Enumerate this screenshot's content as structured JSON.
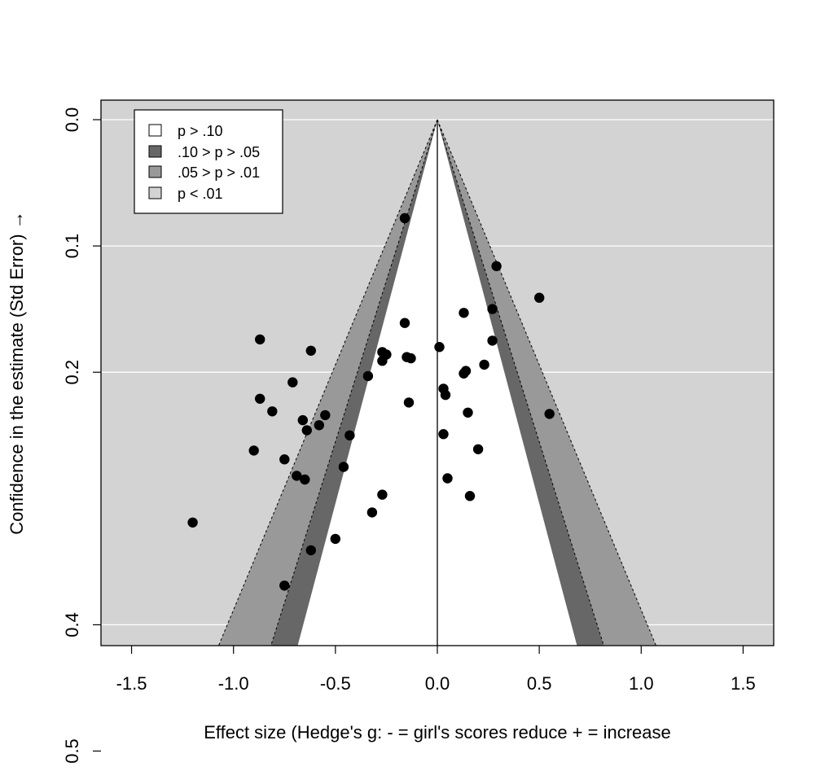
{
  "chart_data": {
    "type": "scatter",
    "subtype": "contour-enhanced funnel plot",
    "xlabel": "Effect size (Hedge's g: - = girl's scores reduce + = increase",
    "ylabel": "Confidence in the estimate (Std Error) →",
    "xlim": [
      -1.65,
      1.65
    ],
    "ylim": [
      0,
      0.52
    ],
    "y_reversed": true,
    "x_ticks": [
      -1.5,
      -1.0,
      -0.5,
      0.0,
      0.5,
      1.0,
      1.5
    ],
    "x_tick_labels": [
      "-1.5",
      "-1.0",
      "-0.5",
      "0.0",
      "0.5",
      "1.0",
      "1.5"
    ],
    "y_ticks": [
      0.0,
      0.1,
      0.2,
      0.4,
      0.5
    ],
    "y_tick_labels": [
      "0.0",
      "0.1",
      "0.2",
      "0.4",
      "0.5"
    ],
    "gridlines": "horizontal",
    "contour_z": {
      "p10": 1.645,
      "p05": 1.96,
      "p01": 2.576
    },
    "contour_colors": {
      "p_gt_10": "#ffffff",
      "p10_05": "#676767",
      "p05_01": "#999999",
      "p_lt_01": "#d3d3d3"
    },
    "legend": {
      "position": "top-left",
      "entries": [
        {
          "label": "p > .10",
          "color": "#ffffff"
        },
        {
          "label": ".10 > p > .05",
          "color": "#676767"
        },
        {
          "label": ".05 > p > .01",
          "color": "#999999"
        },
        {
          "label": "p < .01",
          "color": "#d3d3d3"
        }
      ]
    },
    "points": [
      {
        "x": -0.16,
        "y": 0.078
      },
      {
        "x": 0.29,
        "y": 0.116
      },
      {
        "x": 0.5,
        "y": 0.141
      },
      {
        "x": 0.27,
        "y": 0.15
      },
      {
        "x": 0.13,
        "y": 0.153
      },
      {
        "x": -0.16,
        "y": 0.161
      },
      {
        "x": 0.27,
        "y": 0.175
      },
      {
        "x": -0.87,
        "y": 0.174
      },
      {
        "x": 0.01,
        "y": 0.18
      },
      {
        "x": -0.62,
        "y": 0.183
      },
      {
        "x": -0.27,
        "y": 0.184
      },
      {
        "x": -0.25,
        "y": 0.186
      },
      {
        "x": -0.15,
        "y": 0.188
      },
      {
        "x": -0.13,
        "y": 0.189
      },
      {
        "x": -0.27,
        "y": 0.191
      },
      {
        "x": 0.23,
        "y": 0.194
      },
      {
        "x": 0.14,
        "y": 0.199
      },
      {
        "x": 0.13,
        "y": 0.201
      },
      {
        "x": -0.34,
        "y": 0.203
      },
      {
        "x": -0.71,
        "y": 0.208
      },
      {
        "x": 0.03,
        "y": 0.213
      },
      {
        "x": 0.04,
        "y": 0.218
      },
      {
        "x": -0.87,
        "y": 0.221
      },
      {
        "x": -0.14,
        "y": 0.224
      },
      {
        "x": -0.81,
        "y": 0.231
      },
      {
        "x": 0.55,
        "y": 0.233
      },
      {
        "x": 0.15,
        "y": 0.232
      },
      {
        "x": -0.55,
        "y": 0.234
      },
      {
        "x": -0.66,
        "y": 0.238
      },
      {
        "x": -0.58,
        "y": 0.242
      },
      {
        "x": -0.64,
        "y": 0.246
      },
      {
        "x": 0.03,
        "y": 0.249
      },
      {
        "x": -0.43,
        "y": 0.25
      },
      {
        "x": 0.2,
        "y": 0.261
      },
      {
        "x": -0.9,
        "y": 0.262
      },
      {
        "x": -0.75,
        "y": 0.269
      },
      {
        "x": -0.46,
        "y": 0.275
      },
      {
        "x": -0.69,
        "y": 0.282
      },
      {
        "x": -0.65,
        "y": 0.285
      },
      {
        "x": 0.05,
        "y": 0.284
      },
      {
        "x": -0.27,
        "y": 0.297
      },
      {
        "x": 0.16,
        "y": 0.298
      },
      {
        "x": -0.32,
        "y": 0.311
      },
      {
        "x": -1.2,
        "y": 0.319
      },
      {
        "x": -0.5,
        "y": 0.332
      },
      {
        "x": -0.62,
        "y": 0.341
      },
      {
        "x": -0.75,
        "y": 0.369
      }
    ]
  }
}
